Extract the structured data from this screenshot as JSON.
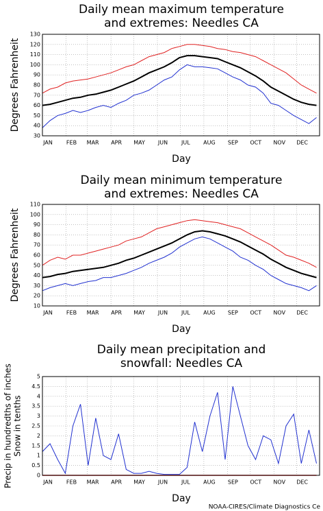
{
  "chart_data": [
    {
      "type": "line",
      "title": [
        "Daily mean maximum temperature",
        "and extremes: Needles CA"
      ],
      "ylabel": [
        "Degrees Fahrenheit"
      ],
      "xlabel": "Day",
      "x": [
        1,
        11,
        21,
        31,
        41,
        51,
        61,
        71,
        81,
        91,
        101,
        111,
        121,
        131,
        141,
        151,
        161,
        171,
        181,
        191,
        201,
        211,
        221,
        231,
        241,
        251,
        261,
        271,
        281,
        291,
        301,
        311,
        321,
        331,
        341,
        351,
        361
      ],
      "xlim": [
        1,
        365
      ],
      "xticks": [
        {
          "value": 1,
          "label": "JAN"
        },
        {
          "value": 32,
          "label": "FEB"
        },
        {
          "value": 60,
          "label": "MAR"
        },
        {
          "value": 91,
          "label": "APR"
        },
        {
          "value": 121,
          "label": "MAY"
        },
        {
          "value": 152,
          "label": "JUN"
        },
        {
          "value": 182,
          "label": "JUL"
        },
        {
          "value": 213,
          "label": "AUG"
        },
        {
          "value": 244,
          "label": "SEP"
        },
        {
          "value": 274,
          "label": "OCT"
        },
        {
          "value": 305,
          "label": "NOV"
        },
        {
          "value": 335,
          "label": "DEC"
        }
      ],
      "ylim": [
        30,
        130
      ],
      "yticks": [
        30,
        40,
        50,
        60,
        70,
        80,
        90,
        100,
        110,
        120,
        130
      ],
      "grid": true,
      "series": [
        {
          "color": "#e02020",
          "width": 1,
          "values": [
            72,
            76,
            78,
            82,
            84,
            85,
            86,
            88,
            90,
            92,
            95,
            98,
            100,
            104,
            108,
            110,
            112,
            116,
            118,
            120,
            120,
            119,
            118,
            116,
            115,
            113,
            112,
            110,
            108,
            104,
            100,
            96,
            92,
            86,
            80,
            76,
            72
          ]
        },
        {
          "color": "#2030d0",
          "width": 1,
          "values": [
            38,
            45,
            50,
            52,
            55,
            53,
            55,
            58,
            60,
            58,
            62,
            65,
            70,
            72,
            75,
            80,
            85,
            88,
            95,
            100,
            98,
            98,
            97,
            96,
            92,
            88,
            85,
            80,
            78,
            72,
            62,
            60,
            55,
            50,
            46,
            42,
            48
          ]
        },
        {
          "color": "#000000",
          "width": 2,
          "values": [
            60,
            61,
            63,
            65,
            67,
            68,
            70,
            71,
            73,
            75,
            78,
            81,
            84,
            88,
            92,
            95,
            98,
            102,
            107,
            109,
            109,
            108,
            107,
            106,
            103,
            100,
            97,
            93,
            89,
            84,
            78,
            74,
            70,
            66,
            63,
            61,
            60
          ]
        }
      ]
    },
    {
      "type": "line",
      "title": [
        "Daily mean minimum temperature",
        "and extremes: Needles CA"
      ],
      "ylabel": [
        "Degrees Fahrenheit"
      ],
      "xlabel": "Day",
      "x": [
        1,
        11,
        21,
        31,
        41,
        51,
        61,
        71,
        81,
        91,
        101,
        111,
        121,
        131,
        141,
        151,
        161,
        171,
        181,
        191,
        201,
        211,
        221,
        231,
        241,
        251,
        261,
        271,
        281,
        291,
        301,
        311,
        321,
        331,
        341,
        351,
        361
      ],
      "xlim": [
        1,
        365
      ],
      "xticks": [
        {
          "value": 1,
          "label": "JAN"
        },
        {
          "value": 32,
          "label": "FEB"
        },
        {
          "value": 60,
          "label": "MAR"
        },
        {
          "value": 91,
          "label": "APR"
        },
        {
          "value": 121,
          "label": "MAY"
        },
        {
          "value": 152,
          "label": "JUN"
        },
        {
          "value": 182,
          "label": "JUL"
        },
        {
          "value": 213,
          "label": "AUG"
        },
        {
          "value": 244,
          "label": "SEP"
        },
        {
          "value": 274,
          "label": "OCT"
        },
        {
          "value": 305,
          "label": "NOV"
        },
        {
          "value": 335,
          "label": "DEC"
        }
      ],
      "ylim": [
        10,
        110
      ],
      "yticks": [
        10,
        20,
        30,
        40,
        50,
        60,
        70,
        80,
        90,
        100,
        110
      ],
      "grid": true,
      "series": [
        {
          "color": "#e02020",
          "width": 1,
          "values": [
            50,
            55,
            58,
            56,
            60,
            60,
            62,
            64,
            66,
            68,
            70,
            74,
            76,
            78,
            82,
            86,
            88,
            90,
            92,
            94,
            95,
            94,
            93,
            92,
            90,
            88,
            86,
            82,
            78,
            74,
            70,
            65,
            60,
            58,
            55,
            52,
            48
          ]
        },
        {
          "color": "#2030d0",
          "width": 1,
          "values": [
            25,
            28,
            30,
            32,
            30,
            32,
            34,
            35,
            38,
            38,
            40,
            42,
            45,
            48,
            52,
            55,
            58,
            62,
            68,
            72,
            76,
            78,
            76,
            72,
            68,
            64,
            58,
            55,
            50,
            46,
            40,
            36,
            32,
            30,
            28,
            25,
            30
          ]
        },
        {
          "color": "#000000",
          "width": 2,
          "values": [
            38,
            39,
            41,
            42,
            44,
            45,
            46,
            47,
            48,
            50,
            52,
            55,
            57,
            60,
            63,
            66,
            69,
            72,
            76,
            80,
            83,
            84,
            83,
            81,
            79,
            76,
            73,
            69,
            65,
            61,
            56,
            52,
            48,
            45,
            42,
            40,
            38
          ]
        }
      ]
    },
    {
      "type": "line",
      "title": [
        "Daily mean precipitation and",
        "snowfall: Needles CA"
      ],
      "ylabel": [
        "Precip in hundredths of inches",
        "Snow in tenths"
      ],
      "xlabel": "Day",
      "x": [
        1,
        11,
        21,
        31,
        41,
        51,
        61,
        71,
        81,
        91,
        101,
        111,
        121,
        131,
        141,
        151,
        161,
        171,
        181,
        191,
        201,
        211,
        221,
        231,
        241,
        251,
        261,
        271,
        281,
        291,
        301,
        311,
        321,
        331,
        341,
        351,
        361
      ],
      "xlim": [
        1,
        365
      ],
      "xticks": [
        {
          "value": 1,
          "label": "JAN"
        },
        {
          "value": 32,
          "label": "FEB"
        },
        {
          "value": 60,
          "label": "MAR"
        },
        {
          "value": 91,
          "label": "APR"
        },
        {
          "value": 121,
          "label": "MAY"
        },
        {
          "value": 152,
          "label": "JUN"
        },
        {
          "value": 182,
          "label": "JUL"
        },
        {
          "value": 213,
          "label": "AUG"
        },
        {
          "value": 244,
          "label": "SEP"
        },
        {
          "value": 274,
          "label": "OCT"
        },
        {
          "value": 305,
          "label": "NOV"
        },
        {
          "value": 335,
          "label": "DEC"
        }
      ],
      "ylim": [
        0,
        5
      ],
      "yticks": [
        0,
        0.5,
        1,
        1.5,
        2,
        2.5,
        3,
        3.5,
        4,
        4.5,
        5
      ],
      "grid": true,
      "series": [
        {
          "color": "#2030d0",
          "width": 1,
          "values": [
            1.2,
            1.6,
            0.8,
            0.1,
            2.5,
            3.6,
            0.5,
            2.9,
            1.0,
            0.8,
            2.1,
            0.3,
            0.1,
            0.1,
            0.2,
            0.1,
            0.05,
            0.05,
            0.05,
            0.4,
            2.7,
            1.2,
            3.0,
            4.2,
            0.8,
            4.5,
            3.0,
            1.5,
            0.8,
            2.0,
            1.8,
            0.6,
            2.5,
            3.1,
            0.6,
            2.3,
            0.6
          ]
        },
        {
          "color": "#e02020",
          "width": 1.5,
          "values": [
            0,
            0,
            0,
            0,
            0,
            0,
            0,
            0,
            0,
            0,
            0,
            0,
            0,
            0,
            0,
            0,
            0,
            0,
            0,
            0,
            0,
            0,
            0,
            0,
            0,
            0,
            0,
            0,
            0,
            0,
            0,
            0,
            0,
            0,
            0,
            0,
            0
          ]
        }
      ]
    }
  ],
  "footer": "NOAA-CIRES/Climate Diagnostics Ce"
}
